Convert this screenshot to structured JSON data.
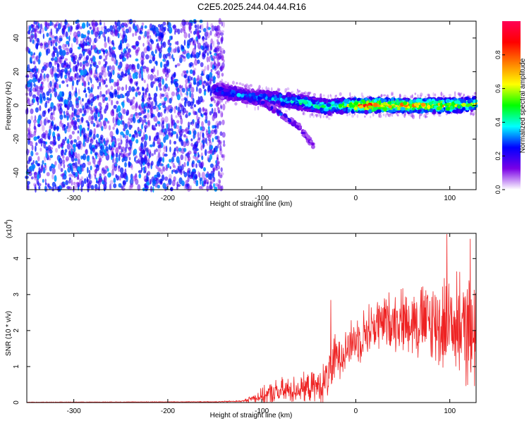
{
  "title": "C2E5.2025.244.04.44.R16",
  "chart_data": [
    {
      "type": "heatmap",
      "name": "spectrogram",
      "xlabel": "Height of straight line (km)",
      "ylabel": "Frequency (Hz)",
      "xlim": [
        -350,
        128
      ],
      "ylim": [
        -50,
        50
      ],
      "x_ticks": [
        -300,
        -200,
        -100,
        0,
        100
      ],
      "x_tick_labels": [
        "-300",
        "-200",
        "-100",
        "0",
        "100"
      ],
      "y_ticks": [
        -40,
        -20,
        0,
        20,
        40
      ],
      "y_tick_labels": [
        "-40",
        "-20",
        "0",
        "20",
        "40"
      ],
      "colorbar": {
        "label": "Normalized spectral amplitude",
        "range": [
          0,
          1
        ],
        "ticks": [
          0.0,
          0.2,
          0.4,
          0.6,
          0.8
        ],
        "tick_labels": [
          "0.0",
          "0.2",
          "0.4",
          "0.6",
          "0.8"
        ],
        "colors": [
          "#ffffff",
          "#7a00e6",
          "#0000ff",
          "#00ffff",
          "#00ff00",
          "#ffff00",
          "#ff7f00",
          "#ff0000",
          "#ff0055"
        ]
      },
      "features": {
        "noise_region_x": [
          -350,
          -140
        ],
        "noise_amplitude": 0.25,
        "signal_track": {
          "x": [
            -150,
            -130,
            -110,
            -90,
            -70,
            -50,
            -30,
            -10,
            0,
            20,
            40,
            60,
            80,
            100,
            128
          ],
          "freq": [
            9,
            7,
            5,
            4,
            3,
            1,
            -1,
            0,
            0,
            0,
            0,
            0,
            0,
            0,
            1
          ],
          "amplitude": [
            0.3,
            0.35,
            0.35,
            0.4,
            0.45,
            0.5,
            0.55,
            0.6,
            0.85,
            0.9,
            0.85,
            0.8,
            0.75,
            0.7,
            0.6
          ]
        },
        "branch_track": {
          "x": [
            -100,
            -80,
            -60,
            -45
          ],
          "freq": [
            2,
            -5,
            -13,
            -24
          ],
          "amplitude": [
            0.25,
            0.3,
            0.2,
            0.15
          ]
        }
      }
    },
    {
      "type": "line",
      "name": "snr",
      "xlabel": "Height of straight line (km)",
      "ylabel": "SNR (10 * v/v)",
      "y_multiplier_label": "(x10",
      "y_multiplier_exp": "4",
      "y_multiplier_close": ")",
      "xlim": [
        -350,
        128
      ],
      "ylim": [
        0,
        4.7
      ],
      "x_ticks": [
        -300,
        -200,
        -100,
        0,
        100
      ],
      "x_tick_labels": [
        "-300",
        "-200",
        "-100",
        "0",
        "100"
      ],
      "y_ticks": [
        0,
        1,
        2,
        3,
        4
      ],
      "y_tick_labels": [
        "0",
        "1",
        "2",
        "3",
        "4"
      ],
      "color": "#ee2222",
      "envelope": {
        "x": [
          -350,
          -150,
          -120,
          -110,
          -100,
          -90,
          -80,
          -60,
          -40,
          -35,
          -30,
          -25,
          -20,
          -10,
          0,
          10,
          20,
          40,
          60,
          80,
          100,
          128
        ],
        "mean": [
          0.01,
          0.02,
          0.04,
          0.12,
          0.18,
          0.25,
          0.3,
          0.38,
          0.45,
          0.5,
          0.7,
          1.1,
          1.3,
          1.5,
          1.75,
          1.95,
          2.15,
          2.3,
          2.3,
          2.2,
          2.15,
          2.0
        ],
        "spread": [
          0.005,
          0.01,
          0.02,
          0.1,
          0.2,
          0.3,
          0.35,
          0.35,
          0.4,
          0.5,
          0.6,
          0.6,
          0.6,
          0.6,
          0.6,
          0.65,
          0.7,
          0.75,
          0.9,
          1.1,
          1.3,
          1.4
        ]
      },
      "peaks": [
        {
          "x": -27,
          "y": 2.85
        },
        {
          "x": 97,
          "y": 4.68
        },
        {
          "x": 122,
          "y": 4.55
        },
        {
          "x": 110,
          "y": 4.3
        }
      ]
    }
  ]
}
